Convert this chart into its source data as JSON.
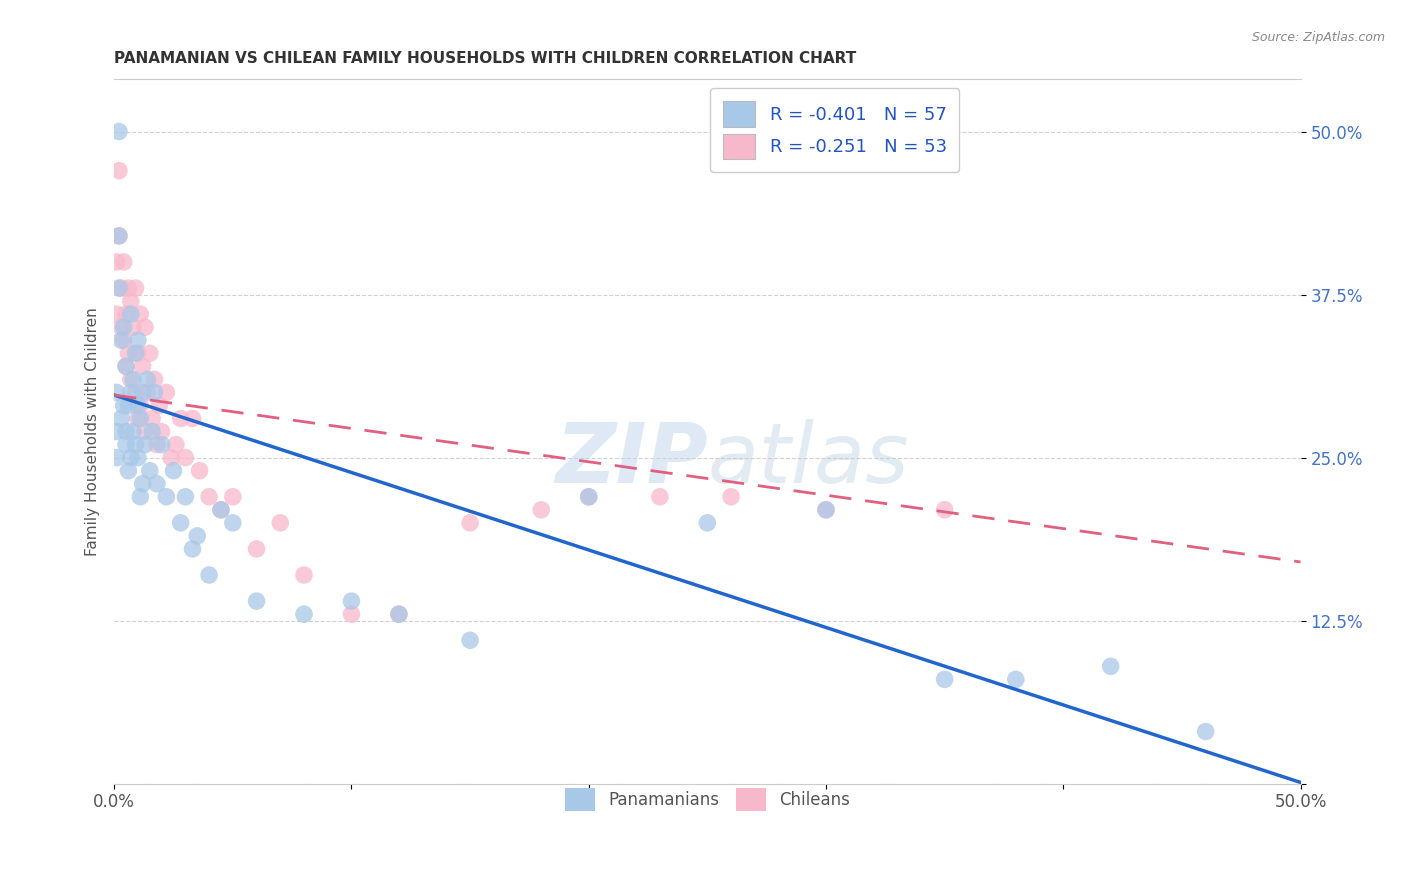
{
  "title": "PANAMANIAN VS CHILEAN FAMILY HOUSEHOLDS WITH CHILDREN CORRELATION CHART",
  "source": "Source: ZipAtlas.com",
  "ylabel": "Family Households with Children",
  "xlim": [
    0.0,
    0.5
  ],
  "ylim": [
    0.0,
    0.54
  ],
  "legend_blue_label": "R = -0.401   N = 57",
  "legend_pink_label": "R = -0.251   N = 53",
  "blue_color": "#a8c8e8",
  "pink_color": "#f8b8cc",
  "blue_line_color": "#2266cc",
  "pink_line_color": "#e06080",
  "watermark_zip": "ZIP",
  "watermark_atlas": "atlas",
  "legend_entries_label1": "Panamanians",
  "legend_entries_label2": "Chileans",
  "pan_scatter_x": [
    0.001,
    0.001,
    0.001,
    0.002,
    0.002,
    0.002,
    0.003,
    0.003,
    0.004,
    0.004,
    0.005,
    0.005,
    0.005,
    0.006,
    0.006,
    0.007,
    0.007,
    0.007,
    0.008,
    0.008,
    0.009,
    0.009,
    0.01,
    0.01,
    0.01,
    0.011,
    0.011,
    0.012,
    0.012,
    0.013,
    0.014,
    0.015,
    0.016,
    0.017,
    0.018,
    0.02,
    0.022,
    0.025,
    0.028,
    0.03,
    0.033,
    0.035,
    0.04,
    0.045,
    0.05,
    0.06,
    0.08,
    0.1,
    0.12,
    0.15,
    0.2,
    0.25,
    0.3,
    0.35,
    0.38,
    0.42,
    0.46
  ],
  "pan_scatter_y": [
    0.3,
    0.27,
    0.25,
    0.5,
    0.42,
    0.38,
    0.34,
    0.28,
    0.35,
    0.29,
    0.32,
    0.27,
    0.26,
    0.29,
    0.24,
    0.36,
    0.3,
    0.25,
    0.31,
    0.27,
    0.33,
    0.26,
    0.34,
    0.29,
    0.25,
    0.28,
    0.22,
    0.3,
    0.23,
    0.26,
    0.31,
    0.24,
    0.27,
    0.3,
    0.23,
    0.26,
    0.22,
    0.24,
    0.2,
    0.22,
    0.18,
    0.19,
    0.16,
    0.21,
    0.2,
    0.14,
    0.13,
    0.14,
    0.13,
    0.11,
    0.22,
    0.2,
    0.21,
    0.08,
    0.08,
    0.09,
    0.04
  ],
  "chi_scatter_x": [
    0.001,
    0.001,
    0.002,
    0.002,
    0.003,
    0.003,
    0.004,
    0.004,
    0.005,
    0.005,
    0.006,
    0.006,
    0.007,
    0.007,
    0.008,
    0.009,
    0.009,
    0.01,
    0.01,
    0.011,
    0.011,
    0.012,
    0.013,
    0.013,
    0.014,
    0.015,
    0.016,
    0.017,
    0.018,
    0.019,
    0.02,
    0.022,
    0.024,
    0.026,
    0.028,
    0.03,
    0.033,
    0.036,
    0.04,
    0.045,
    0.05,
    0.06,
    0.07,
    0.08,
    0.1,
    0.12,
    0.15,
    0.18,
    0.2,
    0.23,
    0.26,
    0.3,
    0.35
  ],
  "chi_scatter_y": [
    0.4,
    0.36,
    0.47,
    0.42,
    0.38,
    0.35,
    0.4,
    0.34,
    0.36,
    0.32,
    0.38,
    0.33,
    0.37,
    0.31,
    0.35,
    0.38,
    0.3,
    0.33,
    0.28,
    0.36,
    0.29,
    0.32,
    0.35,
    0.27,
    0.3,
    0.33,
    0.28,
    0.31,
    0.26,
    0.29,
    0.27,
    0.3,
    0.25,
    0.26,
    0.28,
    0.25,
    0.28,
    0.24,
    0.22,
    0.21,
    0.22,
    0.18,
    0.2,
    0.16,
    0.13,
    0.13,
    0.2,
    0.21,
    0.22,
    0.22,
    0.22,
    0.21,
    0.21
  ],
  "blue_line_x0": 0.0,
  "blue_line_y0": 0.298,
  "blue_line_x1": 0.5,
  "blue_line_y1": 0.001,
  "pink_line_x0": 0.0,
  "pink_line_y0": 0.298,
  "pink_line_x1": 0.5,
  "pink_line_y1": 0.17
}
